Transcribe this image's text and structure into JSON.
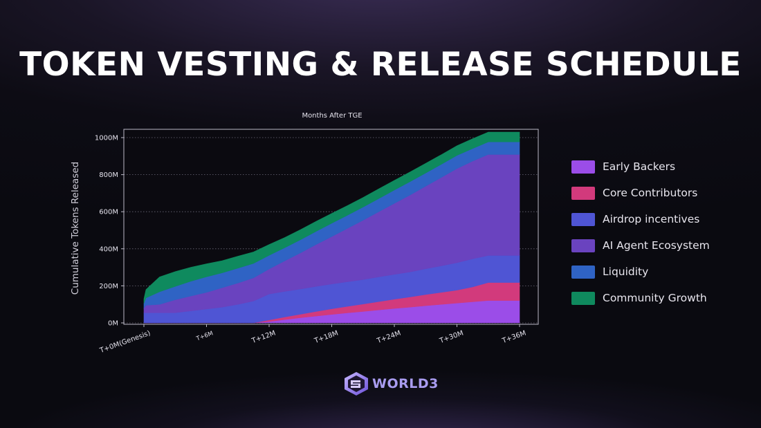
{
  "page": {
    "title": "TOKEN VESTING & RELEASE SCHEDULE"
  },
  "colors": {
    "early_backers": "#9b4de8",
    "core_contributors": "#d23a7c",
    "airdrop_incentives": "#4f55d4",
    "ai_agent_ecosystem": "#6a43bf",
    "liquidity": "#2f63c4",
    "community_growth": "#0f8a5e"
  },
  "chart_data": {
    "type": "area",
    "stacked": true,
    "title": "Months After TGE",
    "xlabel": "",
    "ylabel": "Cumulative Tokens Released",
    "ylim": [
      0,
      1000
    ],
    "y_unit": "M",
    "y_ticks": [
      "0M",
      "200M",
      "400M",
      "600M",
      "800M",
      "1000M"
    ],
    "x_ticks": [
      "T+0M(Genesis)",
      "T+6M",
      "T+12M",
      "T+18M",
      "T+24M",
      "T+30M",
      "T+36M"
    ],
    "grid": true,
    "legend_position": "right",
    "x": [
      0,
      0.2,
      1.5,
      3,
      4.5,
      6,
      7.5,
      9,
      10.5,
      12,
      13.5,
      15,
      16.5,
      18,
      19.5,
      21,
      22.5,
      24,
      25.5,
      27,
      28.5,
      30,
      31.5,
      33,
      34.5,
      36
    ],
    "series": [
      {
        "name": "Early Backers",
        "color": "#9b4de8",
        "values": [
          0,
          0,
          0,
          0,
          0,
          0,
          0,
          0,
          0,
          8,
          18,
          28,
          37,
          46,
          54,
          62,
          70,
          78,
          85,
          93,
          100,
          107,
          114,
          121,
          121,
          121
        ]
      },
      {
        "name": "Core Contributors",
        "color": "#d23a7c",
        "values": [
          0,
          0,
          0,
          0,
          0,
          0,
          0,
          0,
          0,
          8,
          14,
          19,
          25,
          30,
          35,
          40,
          45,
          50,
          55,
          60,
          65,
          70,
          80,
          97,
          97,
          97
        ]
      },
      {
        "name": "Airdrop incentives",
        "color": "#4f55d4",
        "values": [
          55,
          55,
          55,
          55,
          65,
          75,
          85,
          100,
          118,
          140,
          138,
          136,
          135,
          134,
          133,
          132,
          133,
          134,
          135,
          139,
          143,
          148,
          152,
          146,
          146,
          146
        ]
      },
      {
        "name": "AI Agent Ecosystem",
        "color": "#6a43bf",
        "values": [
          25,
          40,
          45,
          70,
          80,
          90,
          105,
          115,
          125,
          135,
          165,
          195,
          226,
          256,
          288,
          320,
          352,
          383,
          415,
          446,
          477,
          508,
          527,
          545,
          545,
          545
        ]
      },
      {
        "name": "Liquidity",
        "color": "#2f63c4",
        "values": [
          25,
          40,
          68,
          72,
          80,
          84,
          80,
          80,
          78,
          74,
          71,
          71,
          71,
          72,
          71,
          71,
          71,
          72,
          72,
          71,
          71,
          71,
          68,
          68,
          68,
          68
        ]
      },
      {
        "name": "Community Growth",
        "color": "#0f8a5e",
        "values": [
          25,
          45,
          80,
          80,
          75,
          70,
          66,
          65,
          62,
          58,
          55,
          54,
          54,
          53,
          52,
          52,
          52,
          52,
          52,
          52,
          52,
          52,
          53,
          53,
          53,
          53
        ]
      }
    ]
  },
  "legend": {
    "items": [
      {
        "label": "Early Backers",
        "color": "#9b4de8"
      },
      {
        "label": "Core Contributors",
        "color": "#d23a7c"
      },
      {
        "label": "Airdrop incentives",
        "color": "#4f55d4"
      },
      {
        "label": "AI Agent Ecosystem",
        "color": "#6a43bf"
      },
      {
        "label": "Liquidity",
        "color": "#2f63c4"
      },
      {
        "label": "Community Growth",
        "color": "#0f8a5e"
      }
    ]
  },
  "brand": {
    "logo_icon": "world3-logo-icon",
    "name": "WORLD3"
  }
}
